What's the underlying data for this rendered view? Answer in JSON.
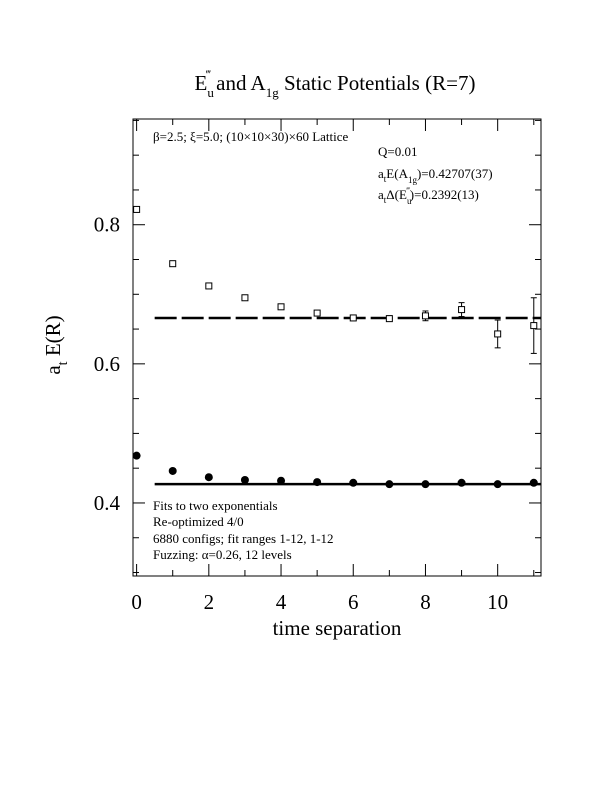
{
  "chart_data": {
    "type": "scatter",
    "title": [
      "E",
      "u",
      "‴",
      "  and A",
      "1g",
      " Static Potentials (R=7)"
    ],
    "x_label": "time separation",
    "y_label": [
      "a",
      "t",
      " E(R)"
    ],
    "xlim": [
      -0.1,
      11.2
    ],
    "ylim": [
      0.295,
      0.952
    ],
    "xticks": [
      0,
      2,
      4,
      6,
      8,
      10
    ],
    "xminorticks": [
      1,
      3,
      5,
      7,
      9,
      11
    ],
    "yticks": [
      0.4,
      0.6,
      0.8
    ],
    "yminorticks": [
      0.3,
      0.35,
      0.45,
      0.5,
      0.55,
      0.65,
      0.7,
      0.75,
      0.85,
      0.9,
      0.95
    ],
    "series": [
      {
        "marker": "square",
        "color": "#000000",
        "x": [
          0,
          1,
          2,
          3,
          4,
          5,
          6,
          7,
          8,
          9,
          10,
          11
        ],
        "values": [
          0.822,
          0.744,
          0.712,
          0.695,
          0.682,
          0.673,
          0.666,
          0.665,
          0.669,
          0.678,
          0.643,
          0.655
        ],
        "errors": [
          0.002,
          0.002,
          0.002,
          0.002,
          0.002,
          0.002,
          0.003,
          0.004,
          0.007,
          0.01,
          0.02,
          0.04
        ]
      },
      {
        "marker": "circle",
        "color": "#000000",
        "x": [
          0,
          1,
          2,
          3,
          4,
          5,
          6,
          7,
          8,
          9,
          10,
          11
        ],
        "values": [
          0.468,
          0.446,
          0.437,
          0.433,
          0.432,
          0.43,
          0.429,
          0.427,
          0.427,
          0.429,
          0.427,
          0.429
        ],
        "errors": [
          0.001,
          0.001,
          0.001,
          0.001,
          0.001,
          0.001,
          0.001,
          0.002,
          0.002,
          0.002,
          0.002,
          0.003
        ]
      }
    ],
    "fits": [
      {
        "style": "dashed",
        "x": [
          0.5,
          11.2
        ],
        "y": 0.666
      },
      {
        "style": "solid",
        "x": [
          0.5,
          11.2
        ],
        "y": 0.42707
      }
    ],
    "annotations_top": [
      [
        "β=2.5; ξ=5.0; (10×10×30)×60 Lattice"
      ],
      [
        "Q=0.01"
      ],
      [
        "a",
        "t",
        "E(A",
        "1g",
        ")=0.42707(37)"
      ],
      [
        "a",
        "t",
        "Δ(E",
        "u",
        "‴",
        ")=0.2392(13)"
      ]
    ],
    "annotations_bottom": [
      "Fits to two exponentials",
      "Re-optimized 4/0",
      "6880 configs; fit ranges 1-12, 1-12",
      "Fuzzing: α=0.26, 12 levels"
    ]
  }
}
